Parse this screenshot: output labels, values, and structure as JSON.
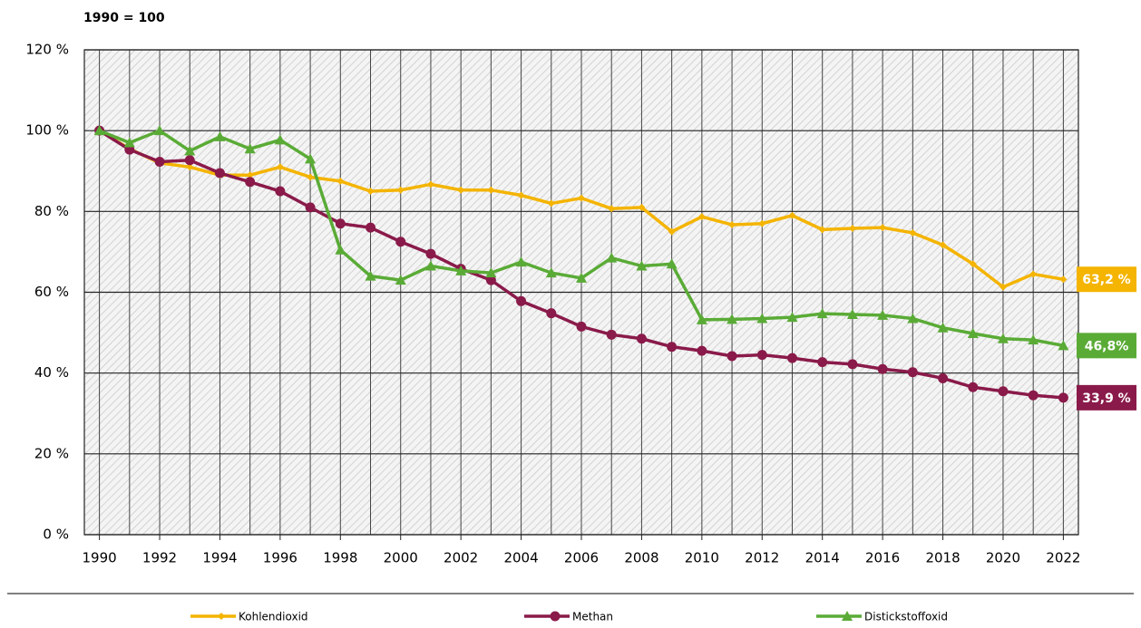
{
  "chart_data": {
    "type": "line",
    "subtitle": "1990 = 100",
    "x": [
      1990,
      1991,
      1992,
      1993,
      1994,
      1995,
      1996,
      1997,
      1998,
      1999,
      2000,
      2001,
      2002,
      2003,
      2004,
      2005,
      2006,
      2007,
      2008,
      2009,
      2010,
      2011,
      2012,
      2013,
      2014,
      2015,
      2016,
      2017,
      2018,
      2019,
      2020,
      2021,
      2022
    ],
    "xlim": [
      1989.5,
      2022.5
    ],
    "xticks": [
      1990,
      1992,
      1994,
      1996,
      1998,
      2000,
      2002,
      2004,
      2006,
      2008,
      2010,
      2012,
      2014,
      2016,
      2018,
      2020,
      2022
    ],
    "ylim": [
      0,
      120
    ],
    "yticks": [
      {
        "value": 0,
        "label": "0 %"
      },
      {
        "value": 20,
        "label": "20 %"
      },
      {
        "value": 40,
        "label": "40 %"
      },
      {
        "value": 60,
        "label": "60 %"
      },
      {
        "value": 80,
        "label": "80 %"
      },
      {
        "value": 100,
        "label": "100 %"
      },
      {
        "value": 120,
        "label": "120 %"
      }
    ],
    "grid": true,
    "series": [
      {
        "name": "Kohlendioxid",
        "color": "#f4b400",
        "marker": "diamond",
        "values": [
          100,
          95.5,
          92,
          91,
          89,
          89,
          91,
          88.5,
          87.5,
          85,
          85.3,
          86.7,
          85.3,
          85.3,
          84,
          82,
          83.3,
          80.7,
          81,
          75,
          78.7,
          76.7,
          77,
          79,
          75.5,
          75.8,
          76,
          74.7,
          71.7,
          67,
          61.3,
          64.5,
          63.2
        ],
        "value_labels": [
          null,
          null,
          null,
          null,
          null,
          null,
          null,
          null,
          null,
          null,
          null,
          null,
          null,
          null,
          null,
          null,
          null,
          null,
          null,
          null,
          null,
          null,
          null,
          null,
          null,
          null,
          null,
          null,
          null,
          null,
          null,
          null,
          "63,2 %"
        ]
      },
      {
        "name": "Methan",
        "color": "#8a1a4a",
        "marker": "circle",
        "values": [
          100,
          95.3,
          92.3,
          92.7,
          89.5,
          87.3,
          85,
          81,
          77,
          76,
          72.5,
          69.5,
          65.8,
          63,
          57.8,
          54.8,
          51.5,
          49.5,
          48.5,
          46.5,
          45.5,
          44.2,
          44.5,
          43.7,
          42.7,
          42.2,
          41,
          40.2,
          38.7,
          36.5,
          35.5,
          34.5,
          33.9
        ],
        "value_labels": [
          null,
          null,
          null,
          null,
          null,
          null,
          null,
          null,
          null,
          null,
          null,
          null,
          null,
          null,
          null,
          null,
          null,
          null,
          null,
          null,
          null,
          null,
          null,
          null,
          null,
          null,
          null,
          null,
          null,
          null,
          null,
          null,
          "33,9 %"
        ]
      },
      {
        "name": "Distickstoffoxid",
        "color": "#5aab36",
        "marker": "triangle",
        "values": [
          100,
          97,
          100,
          95,
          98.5,
          95.5,
          97.7,
          93,
          70.5,
          64,
          63,
          66.5,
          65.3,
          64.8,
          67.5,
          64.8,
          63.5,
          68.5,
          66.5,
          67,
          53.2,
          53.3,
          53.5,
          53.8,
          54.7,
          54.5,
          54.3,
          53.5,
          51.2,
          49.8,
          48.5,
          48.2,
          46.8
        ],
        "value_labels": [
          null,
          null,
          null,
          null,
          null,
          null,
          null,
          null,
          null,
          null,
          null,
          null,
          null,
          null,
          null,
          null,
          null,
          null,
          null,
          null,
          null,
          null,
          null,
          null,
          null,
          null,
          null,
          null,
          null,
          null,
          null,
          null,
          "46,8%"
        ]
      }
    ]
  }
}
